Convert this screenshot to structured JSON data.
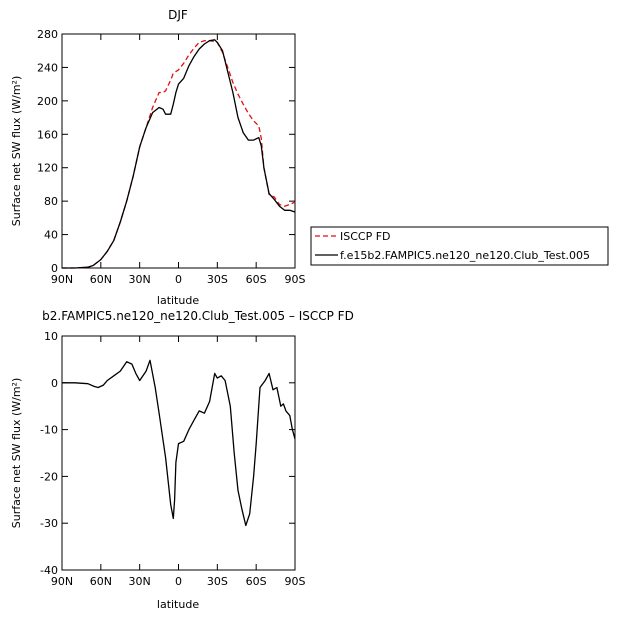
{
  "chart_data": [
    {
      "type": "line",
      "title": "DJF",
      "xlabel": "latitude",
      "ylabel": "Surface net SW flux (W/m²)",
      "x_range": [
        90,
        -90
      ],
      "ylim": [
        0,
        280
      ],
      "x_ticks": [
        {
          "value": 90,
          "label": "90N"
        },
        {
          "value": 60,
          "label": "60N"
        },
        {
          "value": 30,
          "label": "30N"
        },
        {
          "value": 0,
          "label": "0"
        },
        {
          "value": -30,
          "label": "30S"
        },
        {
          "value": -60,
          "label": "60S"
        },
        {
          "value": -90,
          "label": "90S"
        }
      ],
      "y_ticks": [
        0,
        40,
        80,
        120,
        160,
        200,
        240,
        280
      ],
      "grid": false,
      "legend_position": "right",
      "series": [
        {
          "name": "ISCCP FD",
          "color": "#e01010",
          "dash": true,
          "x": [
            90,
            80,
            70,
            66,
            60,
            55,
            50,
            45,
            40,
            35,
            30,
            25,
            20,
            15,
            12,
            10,
            6,
            4,
            2,
            0,
            -4,
            -8,
            -12,
            -16,
            -20,
            -24,
            -28,
            -30,
            -34,
            -38,
            -42,
            -46,
            -50,
            -54,
            -58,
            -62,
            -64,
            -66,
            -70,
            -74,
            -78,
            -82,
            -86,
            -90
          ],
          "y": [
            0,
            0,
            1,
            3,
            10,
            20,
            33,
            55,
            80,
            110,
            145,
            168,
            192,
            210,
            210,
            212,
            225,
            233,
            235,
            237,
            245,
            255,
            263,
            270,
            272,
            272,
            271,
            270,
            258,
            240,
            222,
            208,
            196,
            185,
            176,
            170,
            155,
            120,
            88,
            85,
            76,
            74,
            76,
            79
          ]
        },
        {
          "name": "f.e15b2.FAMPIC5.ne120_ne120.Club_Test.005",
          "color": "#000000",
          "dash": false,
          "x": [
            90,
            80,
            70,
            66,
            60,
            55,
            50,
            45,
            40,
            35,
            30,
            25,
            20,
            15,
            12,
            10,
            6,
            4,
            2,
            0,
            -4,
            -8,
            -12,
            -16,
            -20,
            -24,
            -28,
            -30,
            -34,
            -38,
            -42,
            -46,
            -50,
            -54,
            -58,
            -62,
            -64,
            -66,
            -70,
            -74,
            -78,
            -82,
            -86,
            -90
          ],
          "y": [
            0,
            0,
            1,
            3,
            10,
            20,
            33,
            55,
            80,
            110,
            145,
            168,
            186,
            192,
            190,
            184,
            184,
            196,
            210,
            220,
            227,
            242,
            253,
            262,
            268,
            272,
            273,
            270,
            260,
            235,
            210,
            180,
            162,
            153,
            153,
            156,
            146,
            120,
            89,
            82,
            74,
            69,
            69,
            67
          ]
        }
      ]
    },
    {
      "type": "line",
      "title": "b2.FAMPIC5.ne120_ne120.Club_Test.005 – ISCCP FD",
      "xlabel": "latitude",
      "ylabel": "Surface net SW flux (W/m²)",
      "x_range": [
        90,
        -90
      ],
      "ylim": [
        -40,
        10
      ],
      "x_ticks": [
        {
          "value": 90,
          "label": "90N"
        },
        {
          "value": 60,
          "label": "60N"
        },
        {
          "value": 30,
          "label": "30N"
        },
        {
          "value": 0,
          "label": "0"
        },
        {
          "value": -30,
          "label": "30S"
        },
        {
          "value": -60,
          "label": "60S"
        },
        {
          "value": -90,
          "label": "90S"
        }
      ],
      "y_ticks": [
        10,
        0,
        -10,
        -20,
        -30,
        -40
      ],
      "grid": false,
      "series": [
        {
          "color": "#000000",
          "dash": false,
          "x": [
            90,
            80,
            70,
            65,
            62,
            58,
            55,
            50,
            45,
            40,
            36,
            33,
            30,
            25,
            22,
            18,
            15,
            10,
            6,
            4,
            3,
            2,
            0,
            -4,
            -8,
            -12,
            -16,
            -20,
            -24,
            -28,
            -30,
            -33,
            -36,
            -40,
            -43,
            -46,
            -49,
            -52,
            -55,
            -58,
            -60,
            -63,
            -67,
            -70,
            -73,
            -76,
            -79,
            -81,
            -83,
            -86,
            -88,
            -90
          ],
          "y": [
            0,
            0,
            -0.2,
            -0.8,
            -1,
            -0.5,
            0.5,
            1.5,
            2.5,
            4.5,
            4,
            2,
            0.5,
            2.5,
            4.8,
            -1,
            -6.5,
            -16,
            -26,
            -29,
            -25,
            -17,
            -13,
            -12.5,
            -10,
            -8,
            -6,
            -6.5,
            -4,
            2,
            1,
            1.5,
            0.5,
            -5,
            -15,
            -23,
            -27,
            -30.5,
            -28,
            -20,
            -13,
            -1,
            0.5,
            2,
            -1.5,
            -1,
            -5,
            -4.5,
            -6,
            -7,
            -10,
            -12
          ]
        }
      ]
    }
  ]
}
